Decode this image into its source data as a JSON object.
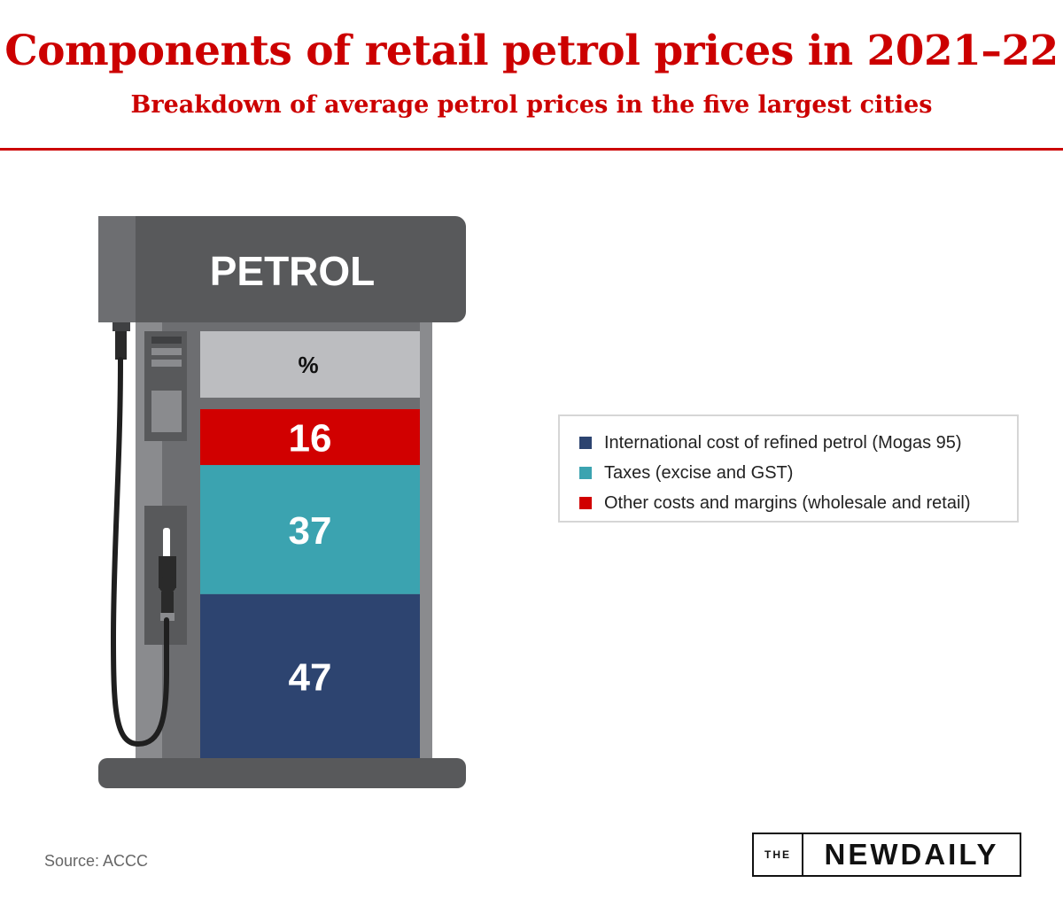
{
  "title": "Components of retail petrol prices in 2021–22",
  "subtitle": "Breakdown of average petrol prices in the five largest cities",
  "pump": {
    "label": "PETROL",
    "unit_label": "%"
  },
  "chart_data": {
    "type": "bar",
    "stacked": true,
    "title": "Components of retail petrol prices in 2021–22",
    "subtitle": "Breakdown of average petrol prices in the five largest cities",
    "unit": "%",
    "categories": [
      "PETROL"
    ],
    "series": [
      {
        "name": "International cost of refined petrol (Mogas 95)",
        "values": [
          47
        ],
        "color": "#2d4470"
      },
      {
        "name": "Taxes (excise and GST)",
        "values": [
          37
        ],
        "color": "#3ba3b0"
      },
      {
        "name": "Other costs and margins (wholesale and retail)",
        "values": [
          16
        ],
        "color": "#d10000"
      }
    ],
    "legend_position": "right"
  },
  "legend": {
    "items": [
      {
        "label": "International cost of refined petrol (Mogas 95)",
        "color": "#2d4470"
      },
      {
        "label": "Taxes (excise and GST)",
        "color": "#3ba3b0"
      },
      {
        "label": "Other costs and margins (wholesale and retail)",
        "color": "#d10000"
      }
    ]
  },
  "source": "Source: ACCC",
  "brand": {
    "prefix": "THE",
    "name": "NEWDAILY"
  },
  "colors": {
    "title": "#cc0000",
    "pump_dark": "#58595b",
    "pump_mid": "#6d6e71",
    "pump_light": "#8a8b8e",
    "header_box": "#bcbdc0"
  }
}
